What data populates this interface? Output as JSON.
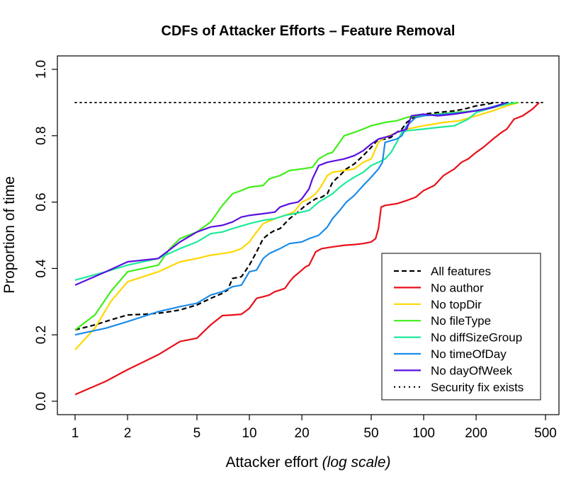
{
  "chart_data": {
    "type": "line",
    "title": "CDFs of Attacker Efforts – Feature Removal",
    "xlabel": "Attacker effort",
    "xlabel_suffix": "(log scale)",
    "ylabel": "Proportion of time",
    "x_scale": "log",
    "xlim": [
      1,
      500
    ],
    "ylim": [
      0,
      1
    ],
    "x_ticks": [
      1,
      2,
      5,
      10,
      20,
      50,
      100,
      200,
      500
    ],
    "x_tick_labels": [
      "1",
      "2",
      "5",
      "10",
      "20",
      "50",
      "100",
      "200",
      "500"
    ],
    "y_ticks": [
      0,
      0.2,
      0.4,
      0.6,
      0.8,
      1.0
    ],
    "y_tick_labels": [
      "0.0",
      "0.2",
      "0.4",
      "0.6",
      "0.8",
      "1.0"
    ],
    "grid": false,
    "legend_position": "bottom-right",
    "series": [
      {
        "name": "All features",
        "color": "#000000",
        "dash": "dashed",
        "points": [
          [
            1,
            0.215
          ],
          [
            1.3,
            0.23
          ],
          [
            1.6,
            0.245
          ],
          [
            2,
            0.26
          ],
          [
            2.5,
            0.262
          ],
          [
            3,
            0.265
          ],
          [
            3.5,
            0.27
          ],
          [
            4,
            0.275
          ],
          [
            5,
            0.29
          ],
          [
            6,
            0.31
          ],
          [
            7,
            0.325
          ],
          [
            7.5,
            0.335
          ],
          [
            8,
            0.37
          ],
          [
            9,
            0.375
          ],
          [
            10,
            0.41
          ],
          [
            11,
            0.45
          ],
          [
            12,
            0.49
          ],
          [
            13,
            0.505
          ],
          [
            14,
            0.515
          ],
          [
            15,
            0.52
          ],
          [
            17,
            0.55
          ],
          [
            19,
            0.57
          ],
          [
            21,
            0.59
          ],
          [
            24,
            0.61
          ],
          [
            26,
            0.615
          ],
          [
            28,
            0.625
          ],
          [
            30,
            0.66
          ],
          [
            33,
            0.68
          ],
          [
            36,
            0.7
          ],
          [
            40,
            0.715
          ],
          [
            45,
            0.74
          ],
          [
            50,
            0.765
          ],
          [
            54,
            0.785
          ],
          [
            60,
            0.79
          ],
          [
            65,
            0.795
          ],
          [
            70,
            0.81
          ],
          [
            75,
            0.82
          ],
          [
            80,
            0.84
          ],
          [
            90,
            0.86
          ],
          [
            100,
            0.865
          ],
          [
            120,
            0.87
          ],
          [
            150,
            0.875
          ],
          [
            170,
            0.88
          ],
          [
            200,
            0.89
          ],
          [
            230,
            0.895
          ],
          [
            260,
            0.9
          ]
        ]
      },
      {
        "name": "No author",
        "color": "#e8101a",
        "dash": "solid",
        "points": [
          [
            1,
            0.02
          ],
          [
            1.5,
            0.06
          ],
          [
            2,
            0.095
          ],
          [
            3,
            0.14
          ],
          [
            4,
            0.18
          ],
          [
            5,
            0.19
          ],
          [
            6,
            0.23
          ],
          [
            7,
            0.258
          ],
          [
            8,
            0.26
          ],
          [
            9,
            0.262
          ],
          [
            10,
            0.28
          ],
          [
            11,
            0.31
          ],
          [
            12,
            0.315
          ],
          [
            13,
            0.32
          ],
          [
            14,
            0.33
          ],
          [
            15,
            0.335
          ],
          [
            16,
            0.34
          ],
          [
            17,
            0.36
          ],
          [
            18,
            0.375
          ],
          [
            19,
            0.385
          ],
          [
            20,
            0.395
          ],
          [
            21,
            0.405
          ],
          [
            22,
            0.41
          ],
          [
            23,
            0.43
          ],
          [
            24,
            0.45
          ],
          [
            26,
            0.46
          ],
          [
            30,
            0.465
          ],
          [
            35,
            0.47
          ],
          [
            40,
            0.472
          ],
          [
            45,
            0.475
          ],
          [
            50,
            0.48
          ],
          [
            53,
            0.49
          ],
          [
            55,
            0.52
          ],
          [
            57,
            0.585
          ],
          [
            60,
            0.59
          ],
          [
            70,
            0.595
          ],
          [
            80,
            0.605
          ],
          [
            90,
            0.615
          ],
          [
            100,
            0.635
          ],
          [
            115,
            0.65
          ],
          [
            130,
            0.68
          ],
          [
            150,
            0.7
          ],
          [
            165,
            0.72
          ],
          [
            180,
            0.73
          ],
          [
            200,
            0.75
          ],
          [
            220,
            0.765
          ],
          [
            250,
            0.79
          ],
          [
            280,
            0.81
          ],
          [
            300,
            0.82
          ],
          [
            330,
            0.85
          ],
          [
            370,
            0.86
          ],
          [
            420,
            0.88
          ],
          [
            460,
            0.9
          ]
        ]
      },
      {
        "name": "No topDir",
        "color": "#ffd700",
        "dash": "solid",
        "points": [
          [
            1,
            0.155
          ],
          [
            1.3,
            0.22
          ],
          [
            1.6,
            0.3
          ],
          [
            2,
            0.36
          ],
          [
            3,
            0.39
          ],
          [
            4,
            0.42
          ],
          [
            5,
            0.43
          ],
          [
            6,
            0.44
          ],
          [
            7,
            0.445
          ],
          [
            8,
            0.45
          ],
          [
            9,
            0.46
          ],
          [
            10,
            0.48
          ],
          [
            11,
            0.51
          ],
          [
            12,
            0.535
          ],
          [
            14,
            0.55
          ],
          [
            16,
            0.56
          ],
          [
            18,
            0.57
          ],
          [
            20,
            0.6
          ],
          [
            22,
            0.61
          ],
          [
            24,
            0.625
          ],
          [
            26,
            0.65
          ],
          [
            28,
            0.68
          ],
          [
            30,
            0.69
          ],
          [
            35,
            0.695
          ],
          [
            40,
            0.7
          ],
          [
            45,
            0.72
          ],
          [
            50,
            0.73
          ],
          [
            55,
            0.78
          ],
          [
            60,
            0.795
          ],
          [
            70,
            0.81
          ],
          [
            80,
            0.82
          ],
          [
            100,
            0.83
          ],
          [
            130,
            0.84
          ],
          [
            160,
            0.845
          ],
          [
            200,
            0.86
          ],
          [
            250,
            0.875
          ],
          [
            300,
            0.89
          ],
          [
            350,
            0.9
          ]
        ]
      },
      {
        "name": "No fileType",
        "color": "#40ee1a",
        "dash": "solid",
        "points": [
          [
            1,
            0.215
          ],
          [
            1.3,
            0.26
          ],
          [
            1.6,
            0.33
          ],
          [
            2,
            0.39
          ],
          [
            3,
            0.41
          ],
          [
            3.5,
            0.46
          ],
          [
            4,
            0.49
          ],
          [
            5,
            0.51
          ],
          [
            6,
            0.54
          ],
          [
            7,
            0.59
          ],
          [
            8,
            0.625
          ],
          [
            9,
            0.635
          ],
          [
            10,
            0.645
          ],
          [
            12,
            0.65
          ],
          [
            13,
            0.67
          ],
          [
            15,
            0.68
          ],
          [
            17,
            0.695
          ],
          [
            20,
            0.7
          ],
          [
            23,
            0.705
          ],
          [
            25,
            0.73
          ],
          [
            28,
            0.745
          ],
          [
            30,
            0.75
          ],
          [
            35,
            0.8
          ],
          [
            40,
            0.81
          ],
          [
            45,
            0.82
          ],
          [
            50,
            0.83
          ],
          [
            60,
            0.84
          ],
          [
            70,
            0.845
          ],
          [
            80,
            0.855
          ],
          [
            90,
            0.86
          ],
          [
            120,
            0.865
          ],
          [
            150,
            0.87
          ],
          [
            200,
            0.875
          ],
          [
            250,
            0.885
          ],
          [
            300,
            0.895
          ],
          [
            350,
            0.9
          ]
        ]
      },
      {
        "name": "No diffSizeGroup",
        "color": "#1deb9a",
        "dash": "solid",
        "points": [
          [
            1,
            0.365
          ],
          [
            1.5,
            0.39
          ],
          [
            2,
            0.41
          ],
          [
            3,
            0.43
          ],
          [
            4,
            0.46
          ],
          [
            5,
            0.48
          ],
          [
            6,
            0.505
          ],
          [
            7,
            0.51
          ],
          [
            8,
            0.52
          ],
          [
            10,
            0.535
          ],
          [
            12,
            0.545
          ],
          [
            14,
            0.55
          ],
          [
            16,
            0.56
          ],
          [
            18,
            0.565
          ],
          [
            20,
            0.57
          ],
          [
            22,
            0.575
          ],
          [
            25,
            0.6
          ],
          [
            30,
            0.625
          ],
          [
            33,
            0.645
          ],
          [
            36,
            0.66
          ],
          [
            40,
            0.675
          ],
          [
            45,
            0.69
          ],
          [
            50,
            0.71
          ],
          [
            55,
            0.72
          ],
          [
            60,
            0.73
          ],
          [
            65,
            0.75
          ],
          [
            70,
            0.78
          ],
          [
            75,
            0.81
          ],
          [
            80,
            0.815
          ],
          [
            100,
            0.82
          ],
          [
            120,
            0.825
          ],
          [
            150,
            0.83
          ],
          [
            180,
            0.85
          ],
          [
            200,
            0.87
          ],
          [
            250,
            0.885
          ],
          [
            300,
            0.895
          ],
          [
            330,
            0.9
          ]
        ]
      },
      {
        "name": "No timeOfDay",
        "color": "#1b8ce8",
        "dash": "solid",
        "points": [
          [
            1,
            0.2
          ],
          [
            1.5,
            0.22
          ],
          [
            2,
            0.24
          ],
          [
            3,
            0.27
          ],
          [
            4,
            0.285
          ],
          [
            5,
            0.295
          ],
          [
            6,
            0.32
          ],
          [
            7,
            0.33
          ],
          [
            8,
            0.345
          ],
          [
            9,
            0.35
          ],
          [
            10,
            0.39
          ],
          [
            11,
            0.395
          ],
          [
            12,
            0.43
          ],
          [
            13,
            0.445
          ],
          [
            15,
            0.46
          ],
          [
            17,
            0.475
          ],
          [
            20,
            0.48
          ],
          [
            22,
            0.49
          ],
          [
            25,
            0.5
          ],
          [
            28,
            0.525
          ],
          [
            30,
            0.55
          ],
          [
            33,
            0.575
          ],
          [
            36,
            0.6
          ],
          [
            40,
            0.62
          ],
          [
            45,
            0.65
          ],
          [
            50,
            0.675
          ],
          [
            55,
            0.7
          ],
          [
            58,
            0.72
          ],
          [
            60,
            0.78
          ],
          [
            70,
            0.79
          ],
          [
            75,
            0.8
          ],
          [
            80,
            0.83
          ],
          [
            90,
            0.855
          ],
          [
            100,
            0.86
          ],
          [
            130,
            0.865
          ],
          [
            170,
            0.87
          ],
          [
            220,
            0.88
          ],
          [
            260,
            0.89
          ],
          [
            300,
            0.9
          ]
        ]
      },
      {
        "name": "No dayOfWeek",
        "color": "#5a10e0",
        "dash": "solid",
        "points": [
          [
            1,
            0.35
          ],
          [
            1.5,
            0.39
          ],
          [
            2,
            0.42
          ],
          [
            3,
            0.43
          ],
          [
            4,
            0.48
          ],
          [
            5,
            0.51
          ],
          [
            6,
            0.525
          ],
          [
            7,
            0.53
          ],
          [
            8,
            0.54
          ],
          [
            9,
            0.555
          ],
          [
            10,
            0.56
          ],
          [
            12,
            0.565
          ],
          [
            14,
            0.57
          ],
          [
            15,
            0.585
          ],
          [
            17,
            0.595
          ],
          [
            19,
            0.6
          ],
          [
            20,
            0.61
          ],
          [
            22,
            0.64
          ],
          [
            23,
            0.67
          ],
          [
            25,
            0.71
          ],
          [
            28,
            0.72
          ],
          [
            35,
            0.73
          ],
          [
            40,
            0.74
          ],
          [
            45,
            0.755
          ],
          [
            50,
            0.775
          ],
          [
            55,
            0.79
          ],
          [
            65,
            0.8
          ],
          [
            70,
            0.81
          ],
          [
            80,
            0.82
          ],
          [
            85,
            0.86
          ],
          [
            100,
            0.865
          ],
          [
            120,
            0.86
          ],
          [
            150,
            0.865
          ],
          [
            200,
            0.875
          ],
          [
            250,
            0.885
          ],
          [
            300,
            0.9
          ]
        ]
      },
      {
        "name": "Security fix exists",
        "color": "#000000",
        "dash": "dotted",
        "points": [
          [
            1,
            0.9
          ],
          [
            500,
            0.9
          ]
        ]
      }
    ]
  }
}
